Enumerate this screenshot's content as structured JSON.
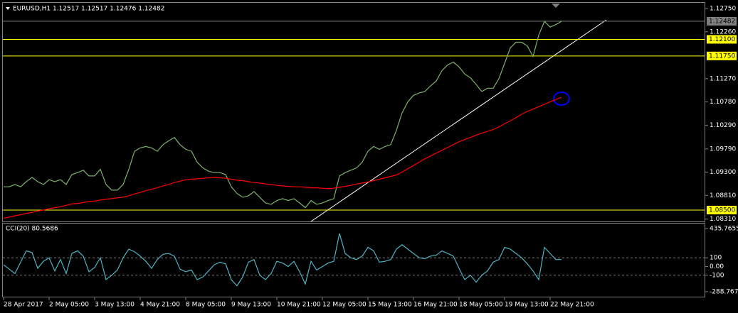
{
  "chart_data": [
    {
      "type": "line",
      "title": "EURUSD,H1  1.12517 1.12517 1.12476 1.12482",
      "categories": [
        "28 Apr 2017",
        null,
        null,
        null,
        null,
        null,
        null,
        null,
        "2 May 05:00",
        null,
        null,
        null,
        null,
        null,
        null,
        null,
        "3 May 13:00",
        null,
        null,
        null,
        null,
        null,
        null,
        null,
        "4 May 21:00",
        null,
        null,
        null,
        null,
        null,
        null,
        null,
        "8 May 05:00",
        null,
        null,
        null,
        null,
        null,
        null,
        null,
        "9 May 13:00",
        null,
        null,
        null,
        null,
        null,
        null,
        null,
        "10 May 21:00",
        null,
        null,
        null,
        null,
        null,
        null,
        null,
        "12 May 05:00",
        null,
        null,
        null,
        null,
        null,
        null,
        null,
        "15 May 13:00",
        null,
        null,
        null,
        null,
        null,
        null,
        null,
        "16 May 21:00",
        null,
        null,
        null,
        null,
        null,
        null,
        null,
        "18 May 05:00",
        null,
        null,
        null,
        null,
        null,
        null,
        null,
        "19 May 13:00",
        null,
        null,
        null,
        null,
        null,
        null,
        null,
        "22 May 21:00",
        null,
        null
      ],
      "series": [
        {
          "color": "#7cb36b",
          "values": [
            1.0899,
            1.0899,
            1.0904,
            1.0899,
            1.091,
            1.0919,
            1.091,
            1.0904,
            1.0914,
            1.091,
            1.0914,
            1.0904,
            1.0925,
            1.0929,
            1.0934,
            1.0922,
            1.0922,
            1.0936,
            1.0904,
            1.0892,
            1.0892,
            1.0904,
            1.0936,
            1.0974,
            1.0981,
            1.0984,
            1.0981,
            1.0974,
            1.0988,
            1.0996,
            1.1003,
            1.0988,
            1.0978,
            1.0974,
            1.0951,
            1.0939,
            1.0932,
            1.0929,
            1.0929,
            1.0925,
            1.0899,
            1.0885,
            1.0877,
            1.088,
            1.0889,
            1.0877,
            1.0865,
            1.0862,
            1.087,
            1.0874,
            1.087,
            1.0874,
            1.0865,
            1.0855,
            1.087,
            1.0862,
            1.0865,
            1.087,
            1.0874,
            1.0922,
            1.0929,
            1.0934,
            1.0939,
            1.0951,
            1.0974,
            1.0984,
            1.0978,
            1.0984,
            1.0988,
            1.1018,
            1.1055,
            1.1078,
            1.1092,
            1.1097,
            1.11,
            1.1112,
            1.1122,
            1.1144,
            1.1156,
            1.1162,
            1.1152,
            1.1137,
            1.1129,
            1.1115,
            1.11,
            1.1107,
            1.1107,
            1.1127,
            1.1159,
            1.1192,
            1.1204,
            1.1204,
            1.1196,
            1.1174,
            1.1219,
            1.1248,
            1.1236,
            1.1241,
            1.1248
          ]
        },
        {
          "color": "#ff0000",
          "values": [
            1.0833,
            1.0835,
            1.0838,
            1.084,
            1.0843,
            1.0845,
            1.0848,
            1.085,
            1.0853,
            1.0855,
            1.0857,
            1.086,
            1.0863,
            1.0864,
            1.0866,
            1.0868,
            1.0869,
            1.0871,
            1.0873,
            1.0874,
            1.0876,
            1.0877,
            1.088,
            1.0884,
            1.0887,
            1.0891,
            1.0894,
            1.0897,
            1.0901,
            1.0904,
            1.0908,
            1.0911,
            1.0914,
            1.0915,
            1.0916,
            1.0917,
            1.0918,
            1.0919,
            1.0918,
            1.0917,
            1.0915,
            1.0913,
            1.0912,
            1.091,
            1.0908,
            1.0907,
            1.0905,
            1.0904,
            1.0902,
            1.0901,
            1.09,
            1.0899,
            1.0899,
            1.0898,
            1.0897,
            1.0897,
            1.0896,
            1.0895,
            1.0896,
            1.0898,
            1.09,
            1.0902,
            1.0905,
            1.0907,
            1.0909,
            1.0912,
            1.0915,
            1.0918,
            1.0921,
            1.0924,
            1.093,
            1.0937,
            1.0944,
            1.0951,
            1.0958,
            1.0964,
            1.097,
            1.0976,
            1.0982,
            1.0988,
            1.0994,
            1.0999,
            1.1003,
            1.1008,
            1.1012,
            1.1016,
            1.102,
            1.1025,
            1.1032,
            1.1038,
            1.1045,
            1.1052,
            1.1058,
            1.1063,
            1.1068,
            1.1073,
            1.1078,
            1.1083,
            1.1088
          ]
        }
      ],
      "ylim": [
        1.0826,
        1.1287
      ],
      "yticks": [
        {
          "value": 1.1275,
          "label": "1.12750"
        },
        {
          "value": 1.1226,
          "label": "1.12260"
        },
        {
          "value": 1.1127,
          "label": "1.11270"
        },
        {
          "value": 1.1078,
          "label": "1.10780"
        },
        {
          "value": 1.1029,
          "label": "1.10290"
        },
        {
          "value": 1.0979,
          "label": "1.09790"
        },
        {
          "value": 1.093,
          "label": "1.09300"
        },
        {
          "value": 1.0881,
          "label": "1.08810"
        },
        {
          "value": 1.0831,
          "label": "1.08310"
        }
      ],
      "hlines": [
        {
          "value": 1.12482,
          "label": "1.12482",
          "color": "#808080"
        },
        {
          "value": 1.121,
          "label": "1.12100",
          "color": "#ffff00"
        },
        {
          "value": 1.1175,
          "label": "1.11750",
          "color": "#ffff00"
        },
        {
          "value": 1.085,
          "label": "1.08500",
          "color": "#ffff00"
        }
      ]
    },
    {
      "type": "line",
      "title": "CCI(20) 80.5686",
      "series": [
        {
          "color": "#4fb3c4",
          "values": [
            20,
            -30,
            -80,
            50,
            180,
            160,
            -20,
            60,
            100,
            -50,
            80,
            -80,
            150,
            180,
            120,
            -60,
            -10,
            100,
            -150,
            -100,
            -40,
            100,
            200,
            170,
            120,
            60,
            -20,
            80,
            140,
            150,
            120,
            -30,
            -60,
            -40,
            -150,
            -120,
            -50,
            20,
            50,
            30,
            -150,
            -220,
            -120,
            50,
            80,
            -100,
            -150,
            -80,
            60,
            40,
            0,
            60,
            -60,
            -200,
            60,
            -40,
            0,
            40,
            60,
            380,
            150,
            100,
            80,
            120,
            220,
            180,
            50,
            60,
            80,
            200,
            250,
            200,
            150,
            100,
            90,
            120,
            130,
            180,
            150,
            120,
            -20,
            -150,
            -100,
            -180,
            -100,
            -50,
            50,
            80,
            220,
            200,
            150,
            100,
            30,
            -50,
            -150,
            220,
            150,
            80,
            80
          ]
        }
      ],
      "ylim": [
        -288.7673,
        435.7655
      ],
      "yticks": [
        435.7655,
        100,
        {
          "value": 0,
          "label": "0.00"
        },
        -100,
        -288.7673
      ],
      "dashed": [
        100,
        -100
      ]
    }
  ]
}
